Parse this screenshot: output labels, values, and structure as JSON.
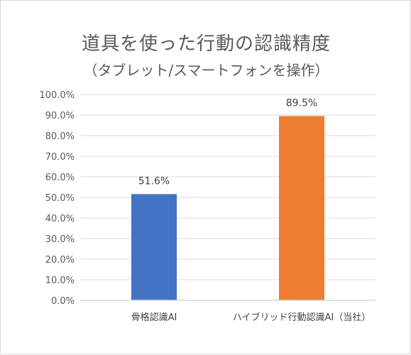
{
  "chart_data": {
    "type": "bar",
    "title": "道具を使った行動の認識精度",
    "subtitle": "（タブレット/スマートフォンを操作）",
    "categories": [
      "骨格認識AI",
      "ハイブリッド行動認識AI（当社）"
    ],
    "values": [
      51.6,
      89.5
    ],
    "data_labels": [
      "51.6%",
      "89.5%"
    ],
    "bar_colors": [
      "#4472C4",
      "#ED7D31"
    ],
    "ylim": [
      0,
      100
    ],
    "yticks": [
      0,
      10,
      20,
      30,
      40,
      50,
      60,
      70,
      80,
      90,
      100
    ],
    "ytick_labels": [
      "0.0%",
      "10.0%",
      "20.0%",
      "30.0%",
      "40.0%",
      "50.0%",
      "60.0%",
      "70.0%",
      "80.0%",
      "90.0%",
      "100.0%"
    ],
    "grid": true,
    "legend": "none",
    "xlabel": "",
    "ylabel": ""
  }
}
